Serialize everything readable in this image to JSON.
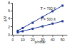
{
  "chart_data": {
    "type": "line",
    "x_label": "p/mbar",
    "y_label": "p/V",
    "x": [
      5,
      10,
      20,
      30,
      40,
      50
    ],
    "series": [
      {
        "name": "T = 700 K",
        "color": "#1f3a93",
        "values": [
          1.0,
          1.7,
          3.0,
          4.4,
          5.9,
          7.3
        ]
      },
      {
        "name": "T = 500 K",
        "color": "#1f3a93",
        "values": [
          0.6,
          0.9,
          1.5,
          2.1,
          2.8,
          3.4
        ]
      }
    ],
    "annotations": [
      {
        "text": "T = 700 K",
        "x": 36,
        "y": 6.6
      },
      {
        "text": "T = 500 K",
        "x": 36,
        "y": 3.9
      }
    ],
    "xlim": [
      0,
      55
    ],
    "xticks": [
      0,
      10,
      20,
      30,
      40,
      50
    ],
    "ylim": [
      0,
      8
    ],
    "yticks": [
      0,
      2,
      4,
      6,
      8
    ],
    "marker": "square",
    "grid": false
  }
}
